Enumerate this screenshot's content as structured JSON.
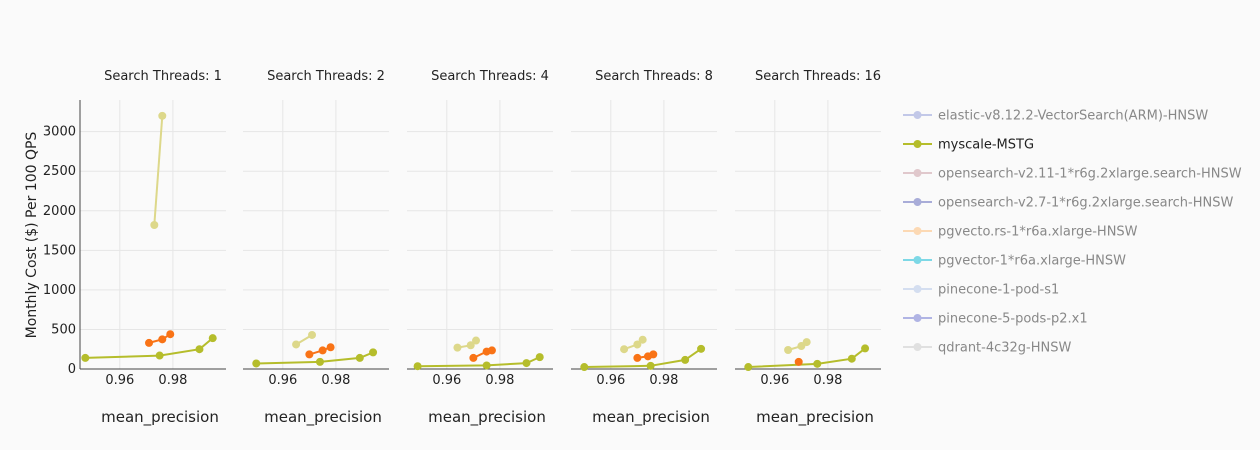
{
  "chart_data": {
    "type": "line",
    "ylabel": "Monthly Cost ($) Per 100 QPS",
    "xlabel": "mean_precision",
    "ylim": [
      0,
      3400
    ],
    "yticks": [
      0,
      500,
      1000,
      1500,
      2000,
      2500,
      3000
    ],
    "xlim": [
      0.945,
      1.0
    ],
    "xticks": [
      0.96,
      0.98
    ],
    "xtick_labels": [
      "0.96",
      "0.98"
    ],
    "colors": {
      "myscale": "#b5bd2b",
      "pgvecto": "#f97316",
      "qdrant": "#ddd88a",
      "faded_pgvecto": "#fcd9b4",
      "elastic": "#c2c8e8",
      "opensearch211": "#e0c8cc",
      "opensearch27": "#a8acd8",
      "pgvector": "#7dd8e6",
      "pinecone1": "#d4def0",
      "pinecone5": "#b0b4e4",
      "qdrant_legend": "#e0e0e0"
    },
    "panels": [
      {
        "title": "Search Threads: 1",
        "series": [
          {
            "key": "myscale",
            "color": "#b5bd2b",
            "points": [
              [
                0.947,
                140
              ],
              [
                0.975,
                170
              ],
              [
                0.99,
                250
              ],
              [
                0.995,
                390
              ]
            ]
          },
          {
            "key": "pgvecto",
            "color": "#f97316",
            "points": [
              [
                0.971,
                330
              ],
              [
                0.976,
                375
              ],
              [
                0.979,
                440
              ]
            ]
          },
          {
            "key": "qdrant",
            "color": "#ddd88a",
            "points": [
              [
                0.973,
                1820
              ],
              [
                0.976,
                3200
              ]
            ]
          }
        ]
      },
      {
        "title": "Search Threads: 2",
        "series": [
          {
            "key": "myscale",
            "color": "#b5bd2b",
            "points": [
              [
                0.95,
                70
              ],
              [
                0.974,
                90
              ],
              [
                0.989,
                140
              ],
              [
                0.994,
                210
              ]
            ]
          },
          {
            "key": "pgvecto",
            "color": "#f97316",
            "points": [
              [
                0.97,
                185
              ],
              [
                0.975,
                235
              ],
              [
                0.978,
                275
              ]
            ]
          },
          {
            "key": "qdrant",
            "color": "#ddd88a",
            "points": [
              [
                0.965,
                310
              ],
              [
                0.971,
                430
              ]
            ]
          }
        ]
      },
      {
        "title": "Search Threads: 4",
        "series": [
          {
            "key": "myscale",
            "color": "#b5bd2b",
            "points": [
              [
                0.949,
                35
              ],
              [
                0.975,
                45
              ],
              [
                0.99,
                75
              ],
              [
                0.995,
                150
              ]
            ]
          },
          {
            "key": "pgvecto",
            "color": "#f97316",
            "points": [
              [
                0.97,
                140
              ],
              [
                0.975,
                220
              ],
              [
                0.977,
                235
              ]
            ]
          },
          {
            "key": "qdrant",
            "color": "#ddd88a",
            "points": [
              [
                0.964,
                270
              ],
              [
                0.969,
                300
              ],
              [
                0.971,
                360
              ]
            ]
          }
        ]
      },
      {
        "title": "Search Threads: 8",
        "series": [
          {
            "key": "myscale",
            "color": "#b5bd2b",
            "points": [
              [
                0.95,
                25
              ],
              [
                0.975,
                40
              ],
              [
                0.988,
                115
              ],
              [
                0.994,
                255
              ]
            ]
          },
          {
            "key": "pgvecto",
            "color": "#f97316",
            "points": [
              [
                0.97,
                140
              ],
              [
                0.974,
                160
              ],
              [
                0.976,
                185
              ]
            ]
          },
          {
            "key": "qdrant",
            "color": "#ddd88a",
            "points": [
              [
                0.965,
                250
              ],
              [
                0.97,
                310
              ],
              [
                0.972,
                370
              ]
            ]
          }
        ]
      },
      {
        "title": "Search Threads: 16",
        "series": [
          {
            "key": "myscale",
            "color": "#b5bd2b",
            "points": [
              [
                0.95,
                25
              ],
              [
                0.976,
                65
              ],
              [
                0.989,
                130
              ],
              [
                0.994,
                260
              ]
            ]
          },
          {
            "key": "pgvecto",
            "color": "#f97316",
            "points": [
              [
                0.969,
                90
              ]
            ]
          },
          {
            "key": "qdrant",
            "color": "#ddd88a",
            "points": [
              [
                0.965,
                240
              ],
              [
                0.97,
                290
              ],
              [
                0.972,
                340
              ]
            ]
          }
        ]
      }
    ],
    "legend": [
      {
        "label": "elastic-v8.12.2-VectorSearch(ARM)-HNSW",
        "color": "#c2c8e8",
        "active": false
      },
      {
        "label": "myscale-MSTG",
        "color": "#b5bd2b",
        "active": true
      },
      {
        "label": "opensearch-v2.11-1*r6g.2xlarge.search-HNSW",
        "color": "#e0c8cc",
        "active": false
      },
      {
        "label": "opensearch-v2.7-1*r6g.2xlarge.search-HNSW",
        "color": "#a8acd8",
        "active": false
      },
      {
        "label": "pgvecto.rs-1*r6a.xlarge-HNSW",
        "color": "#fcd9b4",
        "active": false
      },
      {
        "label": "pgvector-1*r6a.xlarge-HNSW",
        "color": "#7dd8e6",
        "active": false
      },
      {
        "label": "pinecone-1-pod-s1",
        "color": "#d4def0",
        "active": false
      },
      {
        "label": "pinecone-5-pods-p2.x1",
        "color": "#b0b4e4",
        "active": false
      },
      {
        "label": "qdrant-4c32g-HNSW",
        "color": "#e0e0e0",
        "active": false
      }
    ],
    "legend_position": "right"
  }
}
